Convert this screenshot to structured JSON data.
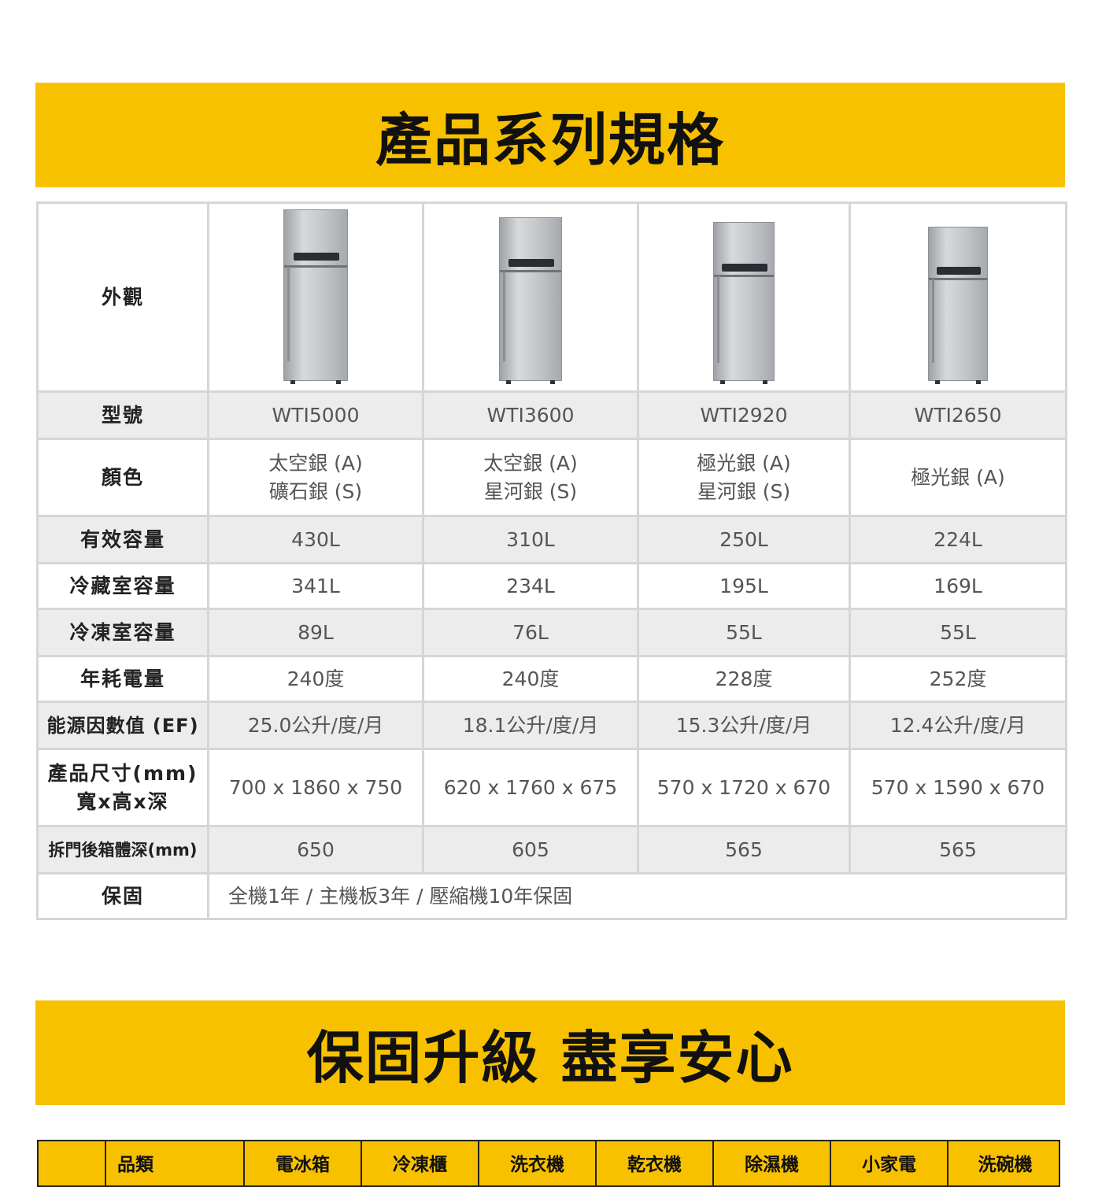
{
  "banner1": {
    "title": "產品系列規格"
  },
  "banner2": {
    "title": "保固升級 盡享安心"
  },
  "spec": {
    "labels": {
      "appearance": "外觀",
      "model": "型號",
      "color": "顏色",
      "capacity": "有效容量",
      "fridge_cap": "冷藏室容量",
      "freezer_cap": "冷凍室容量",
      "annual_power": "年耗電量",
      "ef": "能源因數值 (EF)",
      "size_line1": "產品尺寸(mm)",
      "size_line2": "寬x高x深",
      "depth": "拆門後箱體深(mm)",
      "warranty": "保固"
    },
    "products": [
      {
        "model": "WTI5000",
        "color1": "太空銀 (A)",
        "color2": "礦石銀 (S)",
        "capacity": "430L",
        "fridge_cap": "341L",
        "freezer_cap": "89L",
        "power": "240度",
        "ef": "25.0公升/度/月",
        "size": "700 x 1860 x 750",
        "depth": "650"
      },
      {
        "model": "WTI3600",
        "color1": "太空銀 (A)",
        "color2": "星河銀 (S)",
        "capacity": "310L",
        "fridge_cap": "234L",
        "freezer_cap": "76L",
        "power": "240度",
        "ef": "18.1公升/度/月",
        "size": "620 x 1760 x 675",
        "depth": "605"
      },
      {
        "model": "WTI2920",
        "color1": "極光銀 (A)",
        "color2": "星河銀 (S)",
        "capacity": "250L",
        "fridge_cap": "195L",
        "freezer_cap": "55L",
        "power": "228度",
        "ef": "15.3公升/度/月",
        "size": "570 x 1720 x 670",
        "depth": "565"
      },
      {
        "model": "WTI2650",
        "color1": "極光銀 (A)",
        "color2": "",
        "capacity": "224L",
        "fridge_cap": "169L",
        "freezer_cap": "55L",
        "power": "252度",
        "ef": "12.4公升/度/月",
        "size": "570 x 1590 x 670",
        "depth": "565"
      }
    ],
    "warranty_text": "全機1年 / 主機板3年 / 壓縮機10年保固"
  },
  "warranty_table": {
    "header": [
      "品類",
      "電冰箱",
      "冷凍櫃",
      "洗衣機",
      "乾衣機",
      "除濕機",
      "小家電",
      "洗碗機"
    ]
  }
}
